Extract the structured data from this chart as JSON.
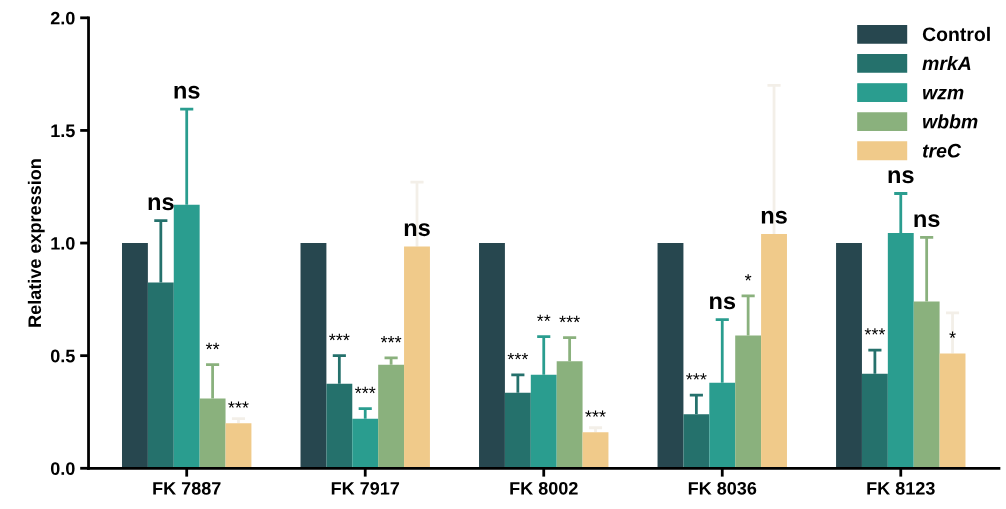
{
  "chart_data": {
    "type": "bar",
    "ylabel": "Relative expression",
    "categories": [
      "FK 7887",
      "FK 7917",
      "FK 8002",
      "FK 8036",
      "FK 8123"
    ],
    "series": [
      {
        "name": "Control",
        "color": "#27474f",
        "values": [
          1,
          1,
          1,
          1,
          1
        ]
      },
      {
        "name": "mrkA",
        "color": "#25716c",
        "values": [
          0.825,
          0.375,
          0.335,
          0.24,
          0.42
        ],
        "errors": [
          [
            0.825,
            1.1
          ],
          [
            0.375,
            0.5
          ],
          [
            0.335,
            0.415
          ],
          [
            0.24,
            0.325
          ],
          [
            0.42,
            0.525
          ]
        ]
      },
      {
        "name": "wzm",
        "color": "#2a9d8f",
        "values": [
          1.17,
          0.22,
          0.415,
          0.38,
          1.045
        ],
        "errors": [
          [
            1.17,
            1.595
          ],
          [
            0.22,
            0.265
          ],
          [
            0.415,
            0.585
          ],
          [
            0.38,
            0.66
          ],
          [
            1.045,
            1.22
          ]
        ]
      },
      {
        "name": "wbbm",
        "color": "#8ab17d",
        "values": [
          0.31,
          0.46,
          0.475,
          0.59,
          0.74
        ],
        "errors": [
          [
            0.31,
            0.46
          ],
          [
            0.46,
            0.49
          ],
          [
            0.475,
            0.58
          ],
          [
            0.59,
            0.765
          ],
          [
            0.74,
            1.025
          ]
        ]
      },
      {
        "name": "treC",
        "color": "#f0ca8a",
        "values": [
          0.2,
          0.985,
          0.16,
          1.04,
          0.51
        ],
        "errors": [
          [
            0.2,
            0.22
          ],
          [
            0.985,
            1.27
          ],
          [
            0.16,
            0.18
          ],
          [
            1.04,
            1.7
          ],
          [
            0.51,
            0.69
          ]
        ]
      }
    ],
    "annotations": [
      "ns",
      "ns",
      "**",
      "***",
      "***",
      "***",
      "***",
      "ns",
      "***",
      "**",
      "***",
      "***",
      "***",
      "ns",
      "*",
      "ns",
      "***",
      "ns",
      "ns",
      "*"
    ],
    "ylim": [
      0,
      2.0
    ],
    "yticks": [
      {
        "value": 0,
        "label": "0.0"
      },
      {
        "value": 0.5,
        "label": "0.5"
      },
      {
        "value": 1.0,
        "label": "1.0"
      },
      {
        "value": 1.5,
        "label": "1.5"
      },
      {
        "value": 2.0,
        "label": "2.0"
      }
    ],
    "grid": false,
    "legend": "top right"
  }
}
